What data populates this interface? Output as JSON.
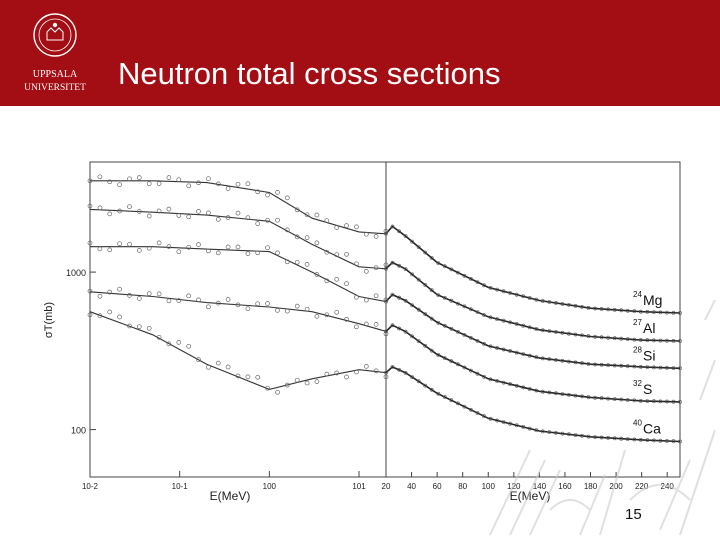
{
  "slide": {
    "title": "Neutron total cross sections",
    "page_number": "15",
    "logo_text_line1": "UPPSALA",
    "logo_text_line2": "UNIVERSITET",
    "header_color": "#a30e14"
  },
  "chart_data": {
    "type": "scatter",
    "title": "",
    "ylabel": "σT(mb)",
    "y_scale": "log",
    "panels": [
      {
        "name": "left",
        "xlabel": "E(MeV)",
        "x_scale": "log",
        "xlim": [
          0.01,
          20
        ],
        "x_ticks": [
          "10-2",
          "10-1",
          "100",
          "101"
        ],
        "x_tick_values": [
          0.01,
          0.1,
          1,
          10
        ]
      },
      {
        "name": "right",
        "xlabel": "E(MeV)",
        "x_scale": "linear",
        "xlim": [
          20,
          250
        ],
        "x_ticks": [
          "20",
          "40",
          "60",
          "80",
          "100",
          "120",
          "140",
          "160",
          "180",
          "200",
          "220",
          "240"
        ],
        "x_tick_values": [
          20,
          40,
          60,
          80,
          100,
          120,
          140,
          160,
          180,
          200,
          220,
          240
        ]
      }
    ],
    "ylim": [
      50,
      5000
    ],
    "y_ticks": [
      "1000",
      "100"
    ],
    "y_tick_values": [
      1000,
      100
    ],
    "series": [
      {
        "name": "24Mg",
        "mass": "24",
        "element": "Mg",
        "left": [
          [
            0.01,
            3800
          ],
          [
            0.05,
            3800
          ],
          [
            0.2,
            3700
          ],
          [
            1,
            3200
          ],
          [
            3,
            2200
          ],
          [
            10,
            1800
          ],
          [
            20,
            1750
          ]
        ],
        "right": [
          [
            20,
            1750
          ],
          [
            25,
            1950
          ],
          [
            35,
            1700
          ],
          [
            60,
            1150
          ],
          [
            100,
            800
          ],
          [
            140,
            660
          ],
          [
            180,
            590
          ],
          [
            220,
            560
          ],
          [
            250,
            550
          ]
        ]
      },
      {
        "name": "27Al",
        "mass": "27",
        "element": "Al",
        "left": [
          [
            0.01,
            2500
          ],
          [
            0.05,
            2400
          ],
          [
            0.2,
            2300
          ],
          [
            1,
            2100
          ],
          [
            3,
            1500
          ],
          [
            10,
            1080
          ],
          [
            20,
            1050
          ]
        ],
        "right": [
          [
            20,
            1050
          ],
          [
            25,
            1150
          ],
          [
            35,
            1050
          ],
          [
            60,
            720
          ],
          [
            100,
            520
          ],
          [
            140,
            430
          ],
          [
            180,
            390
          ],
          [
            220,
            370
          ],
          [
            250,
            365
          ]
        ]
      },
      {
        "name": "28Si",
        "mass": "28",
        "element": "Si",
        "left": [
          [
            0.01,
            1450
          ],
          [
            0.05,
            1450
          ],
          [
            0.2,
            1400
          ],
          [
            1,
            1350
          ],
          [
            3,
            1000
          ],
          [
            10,
            700
          ],
          [
            20,
            650
          ]
        ],
        "right": [
          [
            20,
            650
          ],
          [
            25,
            720
          ],
          [
            35,
            660
          ],
          [
            60,
            480
          ],
          [
            100,
            340
          ],
          [
            140,
            285
          ],
          [
            180,
            260
          ],
          [
            220,
            250
          ],
          [
            250,
            245
          ]
        ]
      },
      {
        "name": "32S",
        "mass": "32",
        "element": "S",
        "left": [
          [
            0.01,
            750
          ],
          [
            0.05,
            700
          ],
          [
            0.2,
            640
          ],
          [
            1,
            600
          ],
          [
            3,
            560
          ],
          [
            10,
            470
          ],
          [
            20,
            420
          ]
        ],
        "right": [
          [
            20,
            420
          ],
          [
            25,
            460
          ],
          [
            35,
            420
          ],
          [
            60,
            300
          ],
          [
            100,
            210
          ],
          [
            140,
            175
          ],
          [
            180,
            160
          ],
          [
            220,
            152
          ],
          [
            250,
            150
          ]
        ]
      },
      {
        "name": "40Ca",
        "mass": "40",
        "element": "Ca",
        "left": [
          [
            0.01,
            560
          ],
          [
            0.05,
            400
          ],
          [
            0.2,
            260
          ],
          [
            1,
            180
          ],
          [
            3,
            210
          ],
          [
            10,
            240
          ],
          [
            20,
            230
          ]
        ],
        "right": [
          [
            20,
            230
          ],
          [
            25,
            250
          ],
          [
            35,
            230
          ],
          [
            60,
            170
          ],
          [
            100,
            118
          ],
          [
            140,
            98
          ],
          [
            180,
            90
          ],
          [
            220,
            86
          ],
          [
            250,
            84
          ]
        ]
      }
    ]
  }
}
